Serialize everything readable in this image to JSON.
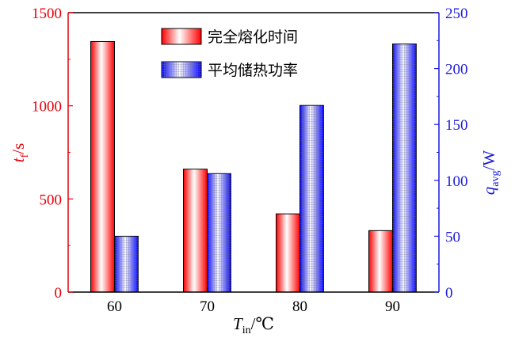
{
  "chart_data": {
    "type": "bar",
    "categories": [
      "60",
      "70",
      "80",
      "90"
    ],
    "series": [
      {
        "name": "完全熔化时间",
        "axis": "left",
        "values": [
          1345,
          660,
          420,
          330
        ],
        "color": "#ff1a1a"
      },
      {
        "name": "平均储热功率",
        "axis": "right",
        "values": [
          50,
          106,
          167,
          222
        ],
        "color": "#1a1aff"
      }
    ],
    "xlabel": {
      "main": "T",
      "sub": "in",
      "unit": "/℃"
    },
    "ylabel_left": {
      "main": "t",
      "sub": "f",
      "unit": "/s"
    },
    "ylabel_right": {
      "main": "q",
      "sub": "avg",
      "unit": "/W"
    },
    "ylim_left": [
      0,
      1500
    ],
    "ylim_right": [
      0,
      250
    ],
    "yticks_left": [
      0,
      500,
      1000,
      1500
    ],
    "yticks_right": [
      0,
      50,
      100,
      150,
      200,
      250
    ],
    "left_axis_color": "#e8000b",
    "right_axis_color": "#1a1adb",
    "grid": false,
    "legend_position": "top-center"
  }
}
